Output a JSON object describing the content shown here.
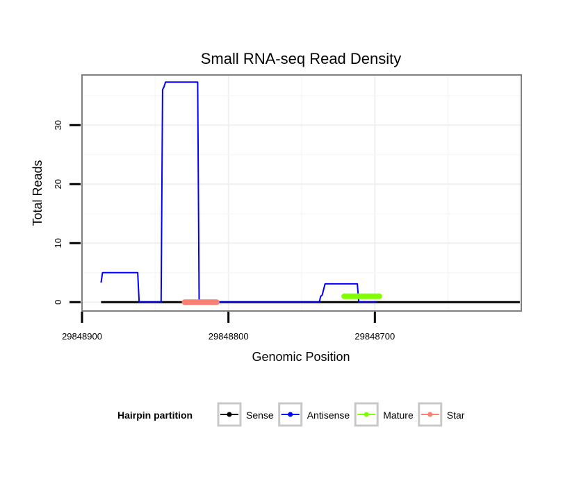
{
  "chart_data": {
    "type": "line",
    "title": "Small RNA-seq Read Density",
    "xlabel": "Genomic Position",
    "ylabel": "Total Reads",
    "xlim": [
      29848900,
      29848600
    ],
    "ylim": [
      -1.5,
      38.5
    ],
    "x_reversed": true,
    "x_ticks": [
      29848900,
      29848800,
      29848700
    ],
    "x_tick_labels": [
      "29848900",
      "29848800",
      "29848700"
    ],
    "y_ticks": [
      0,
      10,
      20,
      30
    ],
    "y_tick_labels": [
      "0",
      "10",
      "20",
      "30"
    ],
    "grid": true,
    "legend": {
      "title": "Hairpin partition",
      "position": "bottom",
      "entries": [
        {
          "label": "Sense",
          "color": "#000000"
        },
        {
          "label": "Antisense",
          "color": "#0000ff"
        },
        {
          "label": "Mature",
          "color": "#7fff00"
        },
        {
          "label": "Star",
          "color": "#fa8072"
        }
      ]
    },
    "series": [
      {
        "name": "Sense",
        "color": "#000000",
        "width": 3,
        "points": [
          [
            29848887,
            0
          ],
          [
            29848601,
            0
          ]
        ]
      },
      {
        "name": "Antisense",
        "color": "#0000ff",
        "width": 2,
        "points": [
          [
            29848887,
            3.3
          ],
          [
            29848886,
            5
          ],
          [
            29848862,
            5
          ],
          [
            29848861,
            0
          ],
          [
            29848846,
            0
          ],
          [
            29848845,
            36
          ],
          [
            29848844,
            36.5
          ],
          [
            29848843,
            37.3
          ],
          [
            29848821,
            37.3
          ],
          [
            29848820,
            0
          ],
          [
            29848738,
            0
          ],
          [
            29848737,
            1
          ],
          [
            29848736,
            1.2
          ],
          [
            29848734,
            3.1
          ],
          [
            29848712,
            3.1
          ],
          [
            29848711,
            0
          ],
          [
            29848699,
            0
          ]
        ]
      },
      {
        "name": "Mature",
        "color": "#7fff00",
        "width": 8,
        "points": [
          [
            29848721,
            1
          ],
          [
            29848697,
            1
          ]
        ]
      },
      {
        "name": "Star",
        "color": "#fa8072",
        "width": 8,
        "points": [
          [
            29848830,
            0
          ],
          [
            29848808,
            0
          ]
        ]
      }
    ]
  }
}
